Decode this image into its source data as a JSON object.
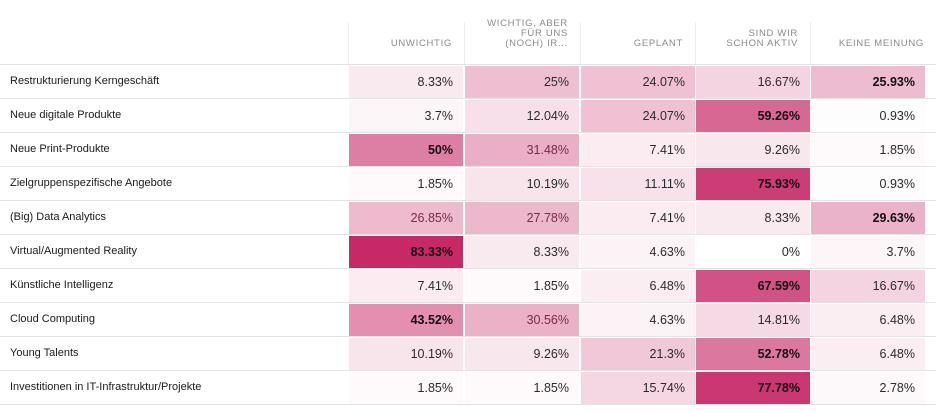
{
  "chart_data": {
    "type": "heatmap",
    "columns": [
      "UNWICHTIG",
      "WICHTIG, ABER\nFÜR UNS\n(NOCH) IR...",
      "GEPLANT",
      "SIND WIR\nSCHON AKTIV",
      "KEINE MEINUNG"
    ],
    "rows": [
      {
        "label": "Restrukturierung Kerngeschäft",
        "values": [
          8.33,
          25,
          24.07,
          16.67,
          25.93
        ],
        "display": [
          "8.33%",
          "25%",
          "24.07%",
          "16.67%",
          "25.93%"
        ]
      },
      {
        "label": "Neue digitale Produkte",
        "values": [
          3.7,
          12.04,
          24.07,
          59.26,
          0.93
        ],
        "display": [
          "3.7%",
          "12.04%",
          "24.07%",
          "59.26%",
          "0.93%"
        ]
      },
      {
        "label": "Neue Print-Produkte",
        "values": [
          50,
          31.48,
          7.41,
          9.26,
          1.85
        ],
        "display": [
          "50%",
          "31.48%",
          "7.41%",
          "9.26%",
          "1.85%"
        ]
      },
      {
        "label": "Zielgruppenspezifische Angebote",
        "values": [
          1.85,
          10.19,
          11.11,
          75.93,
          0.93
        ],
        "display": [
          "1.85%",
          "10.19%",
          "11.11%",
          "75.93%",
          "0.93%"
        ]
      },
      {
        "label": "(Big) Data Analytics",
        "values": [
          26.85,
          27.78,
          7.41,
          8.33,
          29.63
        ],
        "display": [
          "26.85%",
          "27.78%",
          "7.41%",
          "8.33%",
          "29.63%"
        ]
      },
      {
        "label": "Virtual/Augmented Reality",
        "values": [
          83.33,
          8.33,
          4.63,
          0,
          3.7
        ],
        "display": [
          "83.33%",
          "8.33%",
          "4.63%",
          "0%",
          "3.7%"
        ]
      },
      {
        "label": "Künstliche Intelligenz",
        "values": [
          7.41,
          1.85,
          6.48,
          67.59,
          16.67
        ],
        "display": [
          "7.41%",
          "1.85%",
          "6.48%",
          "67.59%",
          "16.67%"
        ]
      },
      {
        "label": "Cloud Computing",
        "values": [
          43.52,
          30.56,
          4.63,
          14.81,
          6.48
        ],
        "display": [
          "43.52%",
          "30.56%",
          "4.63%",
          "14.81%",
          "6.48%"
        ]
      },
      {
        "label": "Young Talents",
        "values": [
          10.19,
          9.26,
          21.3,
          52.78,
          6.48
        ],
        "display": [
          "10.19%",
          "9.26%",
          "21.3%",
          "52.78%",
          "6.48%"
        ]
      },
      {
        "label": "Investitionen in IT-Infrastruktur/Projekte",
        "values": [
          1.85,
          1.85,
          15.74,
          77.78,
          2.78
        ],
        "display": [
          "1.85%",
          "1.85%",
          "15.74%",
          "77.78%",
          "2.78%"
        ]
      }
    ],
    "color_scale": {
      "low": "#ffffff",
      "high": "#c2185b"
    },
    "highlight": "max value per row shown in bold"
  }
}
